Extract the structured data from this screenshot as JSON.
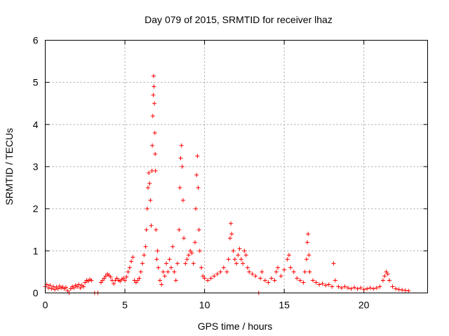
{
  "chart_data": {
    "type": "scatter",
    "title": "Day 079 of 2015, SRMTID for receiver lhaz",
    "xlabel": "GPS time / hours",
    "ylabel": "SRMTID / TECUs",
    "xlim": [
      0,
      24
    ],
    "ylim": [
      0,
      6
    ],
    "xticks": [
      0,
      5,
      10,
      15,
      20
    ],
    "yticks": [
      0,
      1,
      2,
      3,
      4,
      5,
      6
    ],
    "xtick_labels": [
      "0",
      "5",
      "10",
      "15",
      "20"
    ],
    "ytick_labels": [
      "0",
      "1",
      "2",
      "3",
      "4",
      "5",
      "6"
    ],
    "grid": true,
    "marker": "+",
    "color": "#ff0000",
    "series": [
      {
        "name": "SRMTID",
        "points": [
          [
            0.0,
            0.15
          ],
          [
            0.1,
            0.2
          ],
          [
            0.2,
            0.12
          ],
          [
            0.3,
            0.18
          ],
          [
            0.4,
            0.1
          ],
          [
            0.5,
            0.15
          ],
          [
            0.6,
            0.08
          ],
          [
            0.7,
            0.14
          ],
          [
            0.8,
            0.1
          ],
          [
            0.9,
            0.16
          ],
          [
            1.0,
            0.12
          ],
          [
            1.1,
            0.14
          ],
          [
            1.2,
            0.1
          ],
          [
            1.3,
            0.13
          ],
          [
            1.4,
            0.05
          ],
          [
            1.5,
            0.0
          ],
          [
            1.6,
            0.1
          ],
          [
            1.7,
            0.15
          ],
          [
            1.8,
            0.12
          ],
          [
            1.9,
            0.18
          ],
          [
            2.0,
            0.15
          ],
          [
            2.1,
            0.2
          ],
          [
            2.2,
            0.12
          ],
          [
            2.3,
            0.18
          ],
          [
            2.4,
            0.15
          ],
          [
            2.5,
            0.25
          ],
          [
            2.6,
            0.3
          ],
          [
            2.7,
            0.28
          ],
          [
            2.8,
            0.32
          ],
          [
            2.9,
            0.3
          ],
          [
            3.1,
            0.0
          ],
          [
            3.3,
            0.0
          ],
          [
            3.5,
            0.25
          ],
          [
            3.6,
            0.3
          ],
          [
            3.7,
            0.35
          ],
          [
            3.8,
            0.4
          ],
          [
            3.9,
            0.45
          ],
          [
            4.0,
            0.42
          ],
          [
            4.1,
            0.38
          ],
          [
            4.2,
            0.3
          ],
          [
            4.3,
            0.22
          ],
          [
            4.4,
            0.3
          ],
          [
            4.5,
            0.35
          ],
          [
            4.6,
            0.3
          ],
          [
            4.7,
            0.28
          ],
          [
            4.8,
            0.32
          ],
          [
            4.9,
            0.35
          ],
          [
            5.0,
            0.3
          ],
          [
            5.1,
            0.38
          ],
          [
            5.2,
            0.5
          ],
          [
            5.3,
            0.6
          ],
          [
            5.4,
            0.75
          ],
          [
            5.5,
            0.85
          ],
          [
            5.6,
            0.3
          ],
          [
            5.7,
            0.25
          ],
          [
            5.8,
            0.3
          ],
          [
            5.9,
            0.35
          ],
          [
            6.0,
            0.5
          ],
          [
            6.1,
            0.7
          ],
          [
            6.2,
            0.9
          ],
          [
            6.3,
            1.1
          ],
          [
            6.35,
            1.5
          ],
          [
            6.4,
            2.0
          ],
          [
            6.45,
            2.5
          ],
          [
            6.5,
            2.85
          ],
          [
            6.55,
            2.6
          ],
          [
            6.6,
            2.2
          ],
          [
            6.65,
            1.6
          ],
          [
            6.7,
            2.9
          ],
          [
            6.72,
            3.5
          ],
          [
            6.75,
            4.2
          ],
          [
            6.78,
            4.7
          ],
          [
            6.8,
            5.15
          ],
          [
            6.82,
            4.9
          ],
          [
            6.85,
            4.5
          ],
          [
            6.88,
            3.8
          ],
          [
            6.9,
            3.3
          ],
          [
            6.92,
            2.9
          ],
          [
            6.95,
            1.5
          ],
          [
            7.0,
            0.8
          ],
          [
            7.05,
            1.0
          ],
          [
            7.1,
            0.6
          ],
          [
            7.2,
            0.3
          ],
          [
            7.3,
            0.2
          ],
          [
            7.4,
            0.5
          ],
          [
            7.5,
            0.4
          ],
          [
            7.6,
            0.7
          ],
          [
            7.7,
            0.5
          ],
          [
            7.8,
            0.8
          ],
          [
            7.9,
            0.6
          ],
          [
            8.0,
            1.1
          ],
          [
            8.1,
            0.5
          ],
          [
            8.2,
            0.3
          ],
          [
            8.3,
            0.7
          ],
          [
            8.4,
            1.5
          ],
          [
            8.45,
            2.5
          ],
          [
            8.5,
            3.2
          ],
          [
            8.55,
            3.5
          ],
          [
            8.6,
            3.0
          ],
          [
            8.65,
            2.2
          ],
          [
            8.7,
            1.3
          ],
          [
            8.8,
            0.7
          ],
          [
            8.9,
            0.8
          ],
          [
            9.0,
            0.9
          ],
          [
            9.1,
            1.0
          ],
          [
            9.2,
            0.95
          ],
          [
            9.3,
            0.7
          ],
          [
            9.4,
            1.2
          ],
          [
            9.45,
            2.0
          ],
          [
            9.5,
            2.8
          ],
          [
            9.55,
            3.25
          ],
          [
            9.6,
            2.5
          ],
          [
            9.65,
            1.5
          ],
          [
            9.7,
            1.0
          ],
          [
            9.8,
            0.6
          ],
          [
            9.9,
            0.4
          ],
          [
            10.0,
            0.35
          ],
          [
            10.2,
            0.3
          ],
          [
            10.4,
            0.35
          ],
          [
            10.6,
            0.4
          ],
          [
            10.8,
            0.45
          ],
          [
            11.0,
            0.5
          ],
          [
            11.2,
            0.6
          ],
          [
            11.4,
            0.5
          ],
          [
            11.5,
            0.8
          ],
          [
            11.6,
            1.3
          ],
          [
            11.65,
            1.65
          ],
          [
            11.7,
            1.4
          ],
          [
            11.8,
            1.0
          ],
          [
            11.9,
            0.8
          ],
          [
            12.0,
            0.7
          ],
          [
            12.1,
            0.9
          ],
          [
            12.2,
            1.05
          ],
          [
            12.3,
            0.8
          ],
          [
            12.4,
            0.7
          ],
          [
            12.5,
            1.0
          ],
          [
            12.6,
            0.9
          ],
          [
            12.7,
            0.6
          ],
          [
            12.8,
            0.5
          ],
          [
            13.0,
            0.45
          ],
          [
            13.2,
            0.4
          ],
          [
            13.4,
            0.0
          ],
          [
            13.5,
            0.35
          ],
          [
            13.6,
            0.5
          ],
          [
            13.8,
            0.3
          ],
          [
            14.0,
            0.25
          ],
          [
            14.2,
            0.35
          ],
          [
            14.4,
            0.3
          ],
          [
            14.5,
            0.5
          ],
          [
            14.6,
            0.6
          ],
          [
            14.8,
            0.4
          ],
          [
            15.0,
            0.55
          ],
          [
            15.2,
            0.8
          ],
          [
            15.3,
            0.9
          ],
          [
            15.4,
            0.6
          ],
          [
            15.6,
            0.5
          ],
          [
            15.8,
            0.35
          ],
          [
            16.0,
            0.3
          ],
          [
            16.2,
            0.25
          ],
          [
            16.3,
            0.5
          ],
          [
            16.4,
            0.8
          ],
          [
            16.45,
            1.2
          ],
          [
            16.5,
            1.4
          ],
          [
            16.55,
            0.9
          ],
          [
            16.6,
            0.5
          ],
          [
            16.8,
            0.3
          ],
          [
            17.0,
            0.25
          ],
          [
            17.2,
            0.2
          ],
          [
            17.4,
            0.22
          ],
          [
            17.6,
            0.18
          ],
          [
            17.8,
            0.2
          ],
          [
            18.0,
            0.15
          ],
          [
            18.1,
            0.7
          ],
          [
            18.2,
            0.3
          ],
          [
            18.4,
            0.15
          ],
          [
            18.6,
            0.12
          ],
          [
            18.8,
            0.15
          ],
          [
            19.0,
            0.12
          ],
          [
            19.2,
            0.1
          ],
          [
            19.4,
            0.13
          ],
          [
            19.6,
            0.1
          ],
          [
            19.8,
            0.12
          ],
          [
            20.0,
            0.08
          ],
          [
            20.2,
            0.1
          ],
          [
            20.4,
            0.12
          ],
          [
            20.6,
            0.1
          ],
          [
            20.8,
            0.12
          ],
          [
            21.0,
            0.15
          ],
          [
            21.2,
            0.3
          ],
          [
            21.3,
            0.4
          ],
          [
            21.4,
            0.5
          ],
          [
            21.5,
            0.45
          ],
          [
            21.6,
            0.3
          ],
          [
            21.8,
            0.15
          ],
          [
            22.0,
            0.1
          ],
          [
            22.2,
            0.08
          ],
          [
            22.4,
            0.07
          ],
          [
            22.6,
            0.06
          ],
          [
            22.8,
            0.05
          ]
        ]
      }
    ]
  }
}
